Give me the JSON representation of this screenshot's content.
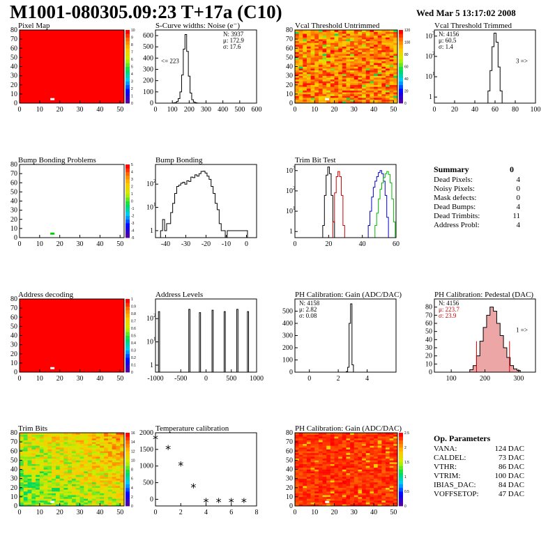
{
  "header": {
    "title": "M1001-080305.09:23 T+17a (C10)",
    "date": "Wed Mar  5 13:17:02 2008"
  },
  "colors": {
    "red": "#ff0000",
    "hist": "#000000",
    "trim_red": "#cc0000",
    "trim_blue": "#0000cc",
    "trim_green": "#00bb00",
    "pedestal_fill": "#cc0000"
  },
  "chart_data": [
    {
      "id": "pixel-map",
      "type": "heatmap",
      "title": "Pixel Map",
      "xlim": [
        0,
        52
      ],
      "ylim": [
        0,
        80
      ],
      "xticks": [
        0,
        10,
        20,
        30,
        40,
        50
      ],
      "yticks": [
        0,
        10,
        20,
        30,
        40,
        50,
        60,
        70,
        80
      ],
      "zticks": [
        0,
        1,
        2,
        3,
        4,
        5,
        6,
        7,
        8,
        9,
        10
      ],
      "fill": "#ff0000",
      "spots": [
        {
          "x": 16,
          "y": 4,
          "color": "#ffffff"
        }
      ]
    },
    {
      "id": "scurve-widths",
      "type": "bar",
      "title": "S-Curve widths: Noise (e⁻)",
      "xlim": [
        0,
        600
      ],
      "ylim": [
        0,
        650
      ],
      "xticks": [
        0,
        100,
        200,
        300,
        400,
        500,
        600
      ],
      "yticks": [
        0,
        100,
        200,
        300,
        400,
        500,
        600
      ],
      "x": [
        110,
        120,
        130,
        140,
        150,
        160,
        170,
        180,
        190,
        200,
        210,
        220,
        230,
        240,
        250
      ],
      "values": [
        2,
        5,
        15,
        40,
        100,
        250,
        480,
        610,
        460,
        240,
        90,
        30,
        10,
        4,
        1
      ],
      "stats": [
        "N: 3937",
        "μ: 172.9",
        "σ: 17.6"
      ],
      "note": "<= 223"
    },
    {
      "id": "vcal-untrimmed",
      "type": "heatmap",
      "title": "Vcal Threshold Untrimmed",
      "xlim": [
        0,
        52
      ],
      "ylim": [
        0,
        80
      ],
      "xticks": [
        0,
        10,
        20,
        30,
        40,
        50
      ],
      "yticks": [
        0,
        10,
        20,
        30,
        40,
        50,
        60,
        70,
        80
      ],
      "zticks": [
        0,
        20,
        40,
        60,
        80,
        100,
        120
      ],
      "fill": "#ffa000",
      "spots": [
        {
          "x": 16,
          "y": 4,
          "color": "#ffffff"
        }
      ]
    },
    {
      "id": "vcal-trimmed",
      "type": "bar",
      "title": "Vcal Threshold Trimmed",
      "log": true,
      "xlim": [
        0,
        100
      ],
      "ylim": [
        0.5,
        2000
      ],
      "xticks": [
        0,
        20,
        40,
        60,
        80,
        100
      ],
      "yticks": [
        1,
        10,
        100,
        1000
      ],
      "x": [
        54,
        56,
        58,
        60,
        62,
        64,
        66
      ],
      "values": [
        2,
        20,
        300,
        1400,
        500,
        30,
        2
      ],
      "stats": [
        "N: 4156",
        "μ: 60.5",
        "σ: 1.4"
      ],
      "note": "3 =>"
    },
    {
      "id": "bump-problems",
      "type": "heatmap",
      "title": "Bump Bonding Problems",
      "xlim": [
        0,
        52
      ],
      "ylim": [
        0,
        80
      ],
      "xticks": [
        0,
        10,
        20,
        30,
        40,
        50
      ],
      "yticks": [
        0,
        10,
        20,
        30,
        40,
        50,
        60,
        70,
        80
      ],
      "zticks": [
        -5,
        -4,
        -3,
        -2,
        -1,
        0,
        1,
        2,
        3,
        4,
        5
      ],
      "fill": "#ffffff",
      "spots": [
        {
          "x": 16,
          "y": 4,
          "color": "#00d000"
        }
      ]
    },
    {
      "id": "bump-bonding",
      "type": "bar",
      "title": "Bump Bonding",
      "log": true,
      "xlim": [
        -45,
        5
      ],
      "ylim": [
        0.5,
        700
      ],
      "xticks": [
        -40,
        -30,
        -20,
        -10,
        0
      ],
      "yticks": [
        1,
        10,
        100
      ],
      "x": [
        -42,
        -41,
        -40,
        -38,
        -37,
        -36,
        -35,
        -34,
        -33,
        -32,
        -31,
        -30,
        -29,
        -28,
        -27,
        -26,
        -25,
        -24,
        -23,
        -22,
        -21,
        -20,
        -19,
        -18,
        -17,
        -16,
        -15,
        -14,
        -13,
        -12,
        -11,
        -10,
        -8,
        0
      ],
      "values": [
        1,
        3,
        1,
        2,
        6,
        15,
        40,
        80,
        90,
        110,
        120,
        100,
        140,
        130,
        200,
        190,
        250,
        220,
        280,
        350,
        360,
        300,
        220,
        160,
        80,
        40,
        15,
        8,
        2,
        1,
        1,
        0,
        1,
        1
      ]
    },
    {
      "id": "trim-bit-test",
      "type": "line",
      "title": "Trim Bit Test",
      "log": true,
      "xlim": [
        0,
        60
      ],
      "ylim": [
        0.5,
        2000
      ],
      "xticks": [
        0,
        20,
        40,
        60
      ],
      "yticks": [
        1,
        10,
        100,
        1000
      ],
      "series": [
        {
          "color": "#000000",
          "x": [
            17,
            18,
            19,
            20,
            21,
            22,
            23
          ],
          "values": [
            2,
            60,
            600,
            1500,
            700,
            60,
            3
          ]
        },
        {
          "color": "#cc0000",
          "x": [
            23,
            24,
            25,
            26,
            27,
            28,
            29
          ],
          "values": [
            3,
            80,
            500,
            900,
            500,
            60,
            2
          ]
        },
        {
          "color": "#0000cc",
          "x": [
            44,
            45,
            46,
            47,
            48,
            49,
            50,
            51,
            52,
            53,
            54,
            55
          ],
          "values": [
            2,
            10,
            50,
            150,
            300,
            500,
            800,
            1000,
            700,
            300,
            60,
            5
          ]
        },
        {
          "color": "#00bb00",
          "x": [
            48,
            49,
            50,
            51,
            52,
            53,
            54,
            55,
            56,
            57,
            58,
            59
          ],
          "values": [
            2,
            8,
            40,
            120,
            250,
            450,
            700,
            900,
            650,
            250,
            40,
            3
          ]
        }
      ]
    },
    {
      "id": "address-decoding",
      "type": "heatmap",
      "title": "Address decoding",
      "xlim": [
        0,
        52
      ],
      "ylim": [
        0,
        80
      ],
      "xticks": [
        0,
        10,
        20,
        30,
        40,
        50
      ],
      "yticks": [
        0,
        10,
        20,
        30,
        40,
        50,
        60,
        70,
        80
      ],
      "zticks": [
        0,
        0.1,
        0.2,
        0.3,
        0.4,
        0.5,
        0.6,
        0.7,
        0.8,
        0.9,
        1
      ],
      "fill": "#ff0000",
      "spots": [
        {
          "x": 16,
          "y": 4,
          "color": "#ffffff"
        }
      ]
    },
    {
      "id": "address-levels",
      "type": "bar",
      "title": "Address Levels",
      "log": true,
      "xlim": [
        -1000,
        1000
      ],
      "ylim": [
        0.5,
        700
      ],
      "xticks": [
        -1000,
        -500,
        0,
        500,
        1000
      ],
      "yticks": [
        1,
        10,
        100
      ],
      "peaks": [
        -930,
        -330,
        -120,
        130,
        370,
        620,
        830
      ],
      "heights": [
        200,
        250,
        180,
        230,
        200,
        250,
        200
      ]
    },
    {
      "id": "ph-gain",
      "type": "bar",
      "title": "PH Calibration: Gain (ADC/DAC)",
      "xlim": [
        -1,
        6
      ],
      "ylim": [
        0,
        600
      ],
      "xticks": [
        0,
        2,
        4
      ],
      "yticks": [
        0,
        100,
        200,
        300,
        400,
        500
      ],
      "x": [
        2.6,
        2.7,
        2.8,
        2.9,
        3.0
      ],
      "values": [
        5,
        40,
        400,
        560,
        60
      ],
      "stats": [
        "N: 4158",
        "μ: 2.82",
        "σ: 0.08"
      ]
    },
    {
      "id": "ph-pedestal",
      "type": "bar",
      "title": "PH Calibration: Pedestal (DAC)",
      "xlim": [
        50,
        350
      ],
      "ylim": [
        0,
        90
      ],
      "xticks": [
        100,
        200,
        300
      ],
      "yticks": [
        0,
        10,
        20,
        30,
        40,
        50,
        60,
        70,
        80
      ],
      "x": [
        160,
        170,
        180,
        190,
        200,
        210,
        220,
        230,
        240,
        250,
        260,
        270,
        280,
        290,
        300
      ],
      "values": [
        3,
        8,
        20,
        38,
        55,
        70,
        80,
        75,
        60,
        45,
        30,
        18,
        8,
        4,
        2
      ],
      "stats": [
        "N: 4156",
        "μ: 223.7",
        "σ: 23.9"
      ],
      "note": "1 =>"
    },
    {
      "id": "trim-bits",
      "type": "heatmap",
      "title": "Trim Bits",
      "xlim": [
        0,
        52
      ],
      "ylim": [
        0,
        80
      ],
      "xticks": [
        0,
        10,
        20,
        30,
        40,
        50
      ],
      "yticks": [
        0,
        10,
        20,
        30,
        40,
        50,
        60,
        70,
        80
      ],
      "zticks": [
        0,
        2,
        4,
        6,
        8,
        10,
        12,
        14,
        16
      ],
      "fill": "#80e040",
      "spots": [
        {
          "x": 16,
          "y": 4,
          "color": "#ffffff"
        }
      ]
    },
    {
      "id": "temperature-calibration",
      "type": "scatter",
      "title": "Temperature calibration",
      "xlim": [
        0,
        8
      ],
      "ylim": [
        -200,
        2000
      ],
      "xticks": [
        0,
        2,
        4,
        6,
        8
      ],
      "yticks": [
        0,
        500,
        1000,
        1500,
        2000
      ],
      "x": [
        0,
        1,
        2,
        3,
        4,
        5,
        6,
        7
      ],
      "values": [
        1800,
        1500,
        1000,
        350,
        -100,
        -100,
        -100,
        -100
      ]
    },
    {
      "id": "ph-gain-map",
      "type": "heatmap",
      "title": "PH Calibration: Gain (ADC/DAC)",
      "xlim": [
        0,
        52
      ],
      "ylim": [
        0,
        80
      ],
      "xticks": [
        0,
        10,
        20,
        30,
        40,
        50
      ],
      "yticks": [
        0,
        10,
        20,
        30,
        40,
        50,
        60,
        70,
        80
      ],
      "zticks": [
        0,
        0.5,
        1,
        1.5,
        2,
        2.5
      ],
      "fill": "#ff2000",
      "spots": [
        {
          "x": 16,
          "y": 4,
          "color": "#ffffff"
        }
      ]
    }
  ],
  "summary": {
    "title": "Summary",
    "total": "0",
    "rows": [
      {
        "label": "Dead Pixels:",
        "value": "4"
      },
      {
        "label": "Noisy Pixels:",
        "value": "0"
      },
      {
        "label": "Mask defects:",
        "value": "0"
      },
      {
        "label": "Dead Bumps:",
        "value": "4"
      },
      {
        "label": "Dead Trimbits:",
        "value": "11"
      },
      {
        "label": "Address Probl:",
        "value": "4"
      }
    ]
  },
  "op_params": {
    "title": "Op. Parameters",
    "rows": [
      {
        "label": "VANA:",
        "value": "124 DAC"
      },
      {
        "label": "CALDEL:",
        "value": "73 DAC"
      },
      {
        "label": "VTHR:",
        "value": "86 DAC"
      },
      {
        "label": "VTRIM:",
        "value": "100 DAC"
      },
      {
        "label": "IBIAS_DAC:",
        "value": "84 DAC"
      },
      {
        "label": "VOFFSETOP:",
        "value": "47 DAC"
      }
    ]
  }
}
